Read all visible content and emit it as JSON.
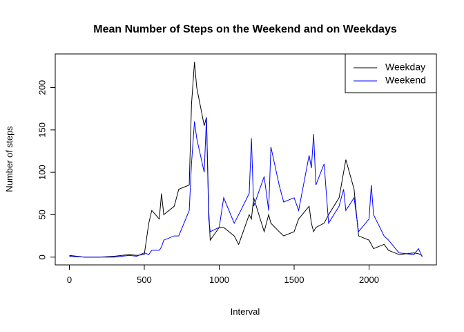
{
  "chart_data": {
    "type": "line",
    "title": "Mean Number of Steps on the Weekend and on Weekdays",
    "x_label": "Interval",
    "y_label": "Number of steps",
    "x": [
      0,
      100,
      200,
      300,
      400,
      450,
      500,
      530,
      550,
      600,
      615,
      630,
      700,
      730,
      800,
      815,
      835,
      850,
      900,
      915,
      930,
      940,
      1000,
      1030,
      1100,
      1130,
      1200,
      1215,
      1230,
      1300,
      1330,
      1345,
      1400,
      1430,
      1500,
      1530,
      1600,
      1615,
      1630,
      1645,
      1700,
      1730,
      1800,
      1830,
      1845,
      1900,
      1930,
      2000,
      2015,
      2030,
      2100,
      2130,
      2200,
      2300,
      2330,
      2355
    ],
    "series": [
      {
        "name": "Weekday",
        "color": "#000000",
        "values": [
          2,
          0,
          0,
          1,
          3,
          2,
          3,
          40,
          55,
          45,
          75,
          50,
          60,
          80,
          85,
          180,
          230,
          200,
          155,
          165,
          55,
          20,
          35,
          35,
          25,
          15,
          50,
          45,
          70,
          30,
          50,
          40,
          30,
          25,
          30,
          45,
          60,
          40,
          30,
          35,
          40,
          50,
          70,
          100,
          115,
          80,
          25,
          20,
          15,
          10,
          15,
          8,
          3,
          5,
          4,
          2
        ]
      },
      {
        "name": "Weekend",
        "color": "#0000ff",
        "values": [
          1,
          0,
          0,
          0,
          2,
          1,
          5,
          3,
          8,
          8,
          12,
          20,
          25,
          25,
          55,
          110,
          160,
          140,
          100,
          165,
          45,
          30,
          35,
          70,
          40,
          50,
          75,
          140,
          60,
          95,
          55,
          130,
          85,
          65,
          70,
          55,
          120,
          105,
          145,
          85,
          110,
          40,
          60,
          80,
          55,
          70,
          30,
          45,
          85,
          50,
          25,
          20,
          5,
          3,
          10,
          0
        ]
      }
    ],
    "xlim": [
      -94.2,
      2449.2
    ],
    "ylim": [
      -9.2,
      239.6
    ],
    "xticks": [
      0,
      500,
      1000,
      1500,
      2000
    ],
    "yticks": [
      0,
      50,
      100,
      150,
      200
    ],
    "legend": "topright"
  }
}
